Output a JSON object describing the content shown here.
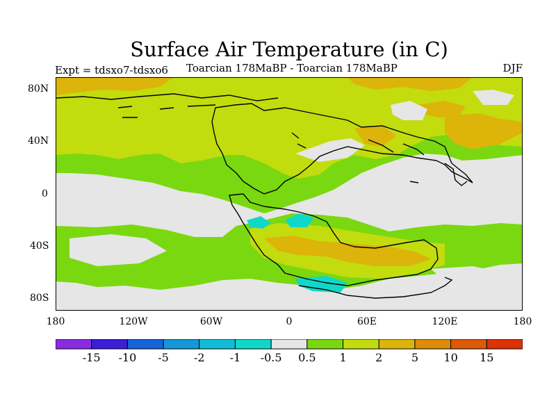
{
  "title": "Surface Air Temperature (in C)",
  "subtitle_left": "Expt = tdsxo7-tdsxo6",
  "subtitle_center": "Toarcian 178MaBP - Toarcian 178MaBP",
  "subtitle_right": "DJF",
  "lat_ticks": [
    "80N",
    "40N",
    "0",
    "40S",
    "80S"
  ],
  "lon_ticks": [
    "180",
    "120W",
    "60W",
    "0",
    "60E",
    "120E",
    "180"
  ],
  "colorbar": {
    "colors": [
      "#8a2be2",
      "#3a1fd6",
      "#1564d8",
      "#1597d8",
      "#12bcd6",
      "#10d8c8",
      "#e6e6e6",
      "#7ad810",
      "#c2dc0e",
      "#dcb40a",
      "#dc8c08",
      "#dc5a08",
      "#dc3206"
    ],
    "labels": [
      "-15",
      "-10",
      "-5",
      "-2",
      "-1",
      "-0.5",
      "0.5",
      "1",
      "2",
      "5",
      "10",
      "15"
    ]
  },
  "map_colors": {
    "background": "#e6e6e6",
    "green": "#7ad810",
    "yellow_green": "#c2dc0e",
    "orange": "#dcb40a",
    "cyan": "#10d8c8",
    "coast": "#000000"
  }
}
